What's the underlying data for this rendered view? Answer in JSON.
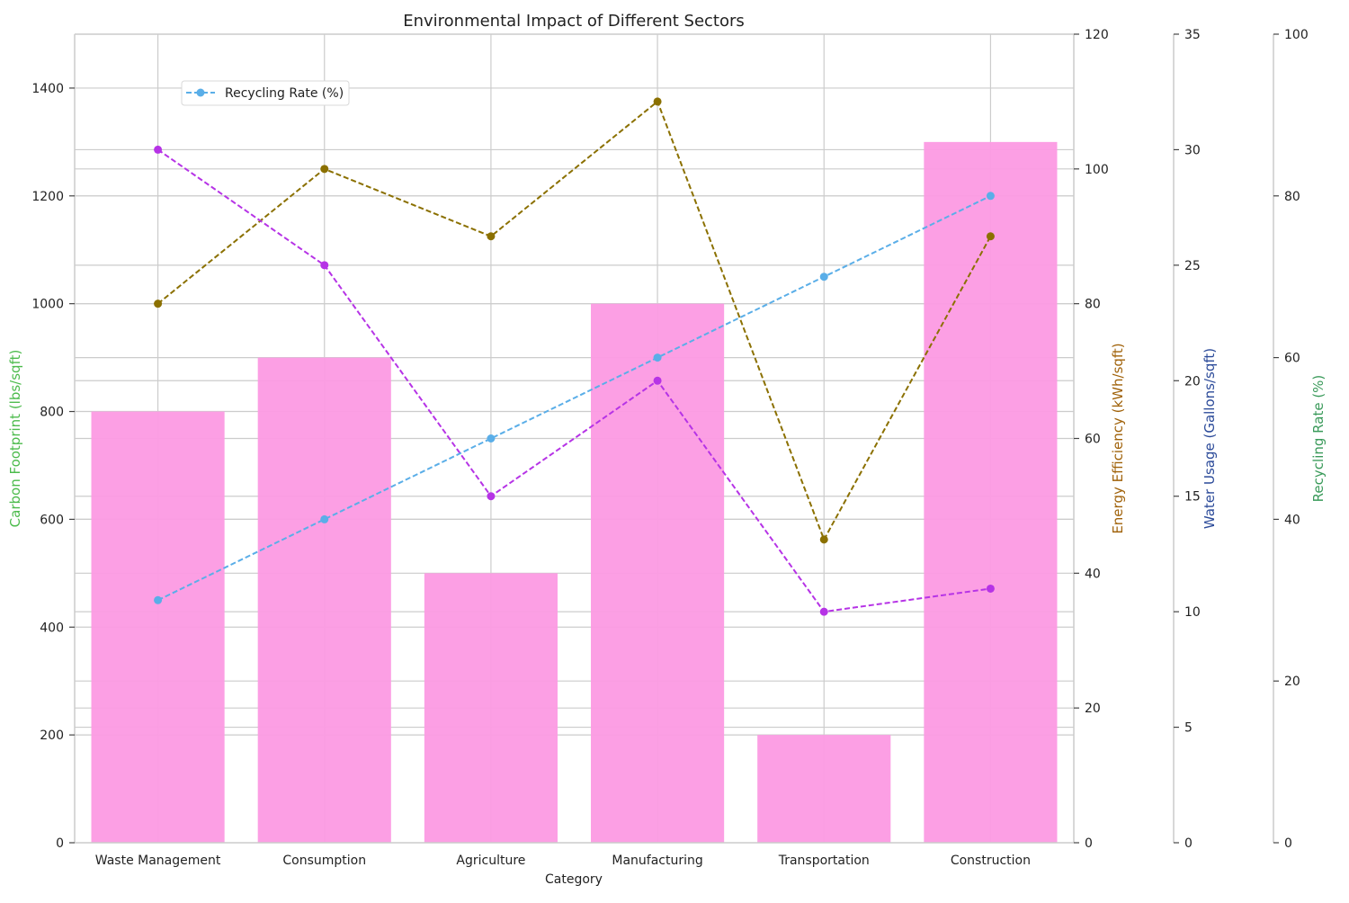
{
  "chart_data": {
    "type": "bar",
    "title": "Environmental Impact of Different Sectors",
    "xlabel": "Category",
    "categories": [
      "Waste Management",
      "Consumption",
      "Agriculture",
      "Manufacturing",
      "Transportation",
      "Construction"
    ],
    "grid": true,
    "legend": {
      "placement": "top-left",
      "entries": [
        "Recycling Rate (%)"
      ]
    },
    "axes": [
      {
        "id": "carbon",
        "label": "Carbon Footprint (lbs/sqft)",
        "color": "#4cbb4c",
        "range": [
          0,
          1500
        ],
        "ticks": [
          0,
          200,
          400,
          600,
          800,
          1000,
          1200,
          1400
        ]
      },
      {
        "id": "energy",
        "label": "Energy Efficiency (kWh/sqft)",
        "color": "#a0620a",
        "range": [
          0,
          120
        ],
        "ticks": [
          0,
          20,
          40,
          60,
          80,
          100,
          120
        ]
      },
      {
        "id": "water",
        "label": "Water Usage (Gallons/sqft)",
        "color": "#2b4a99",
        "range": [
          0,
          35
        ],
        "ticks": [
          0,
          5,
          10,
          15,
          20,
          25,
          30,
          35
        ]
      },
      {
        "id": "recycling",
        "label": "Recycling Rate (%)",
        "color": "#3a9a5a",
        "range": [
          0,
          100
        ],
        "ticks": [
          0,
          20,
          40,
          60,
          80,
          100
        ]
      }
    ],
    "series": [
      {
        "name": "Carbon Footprint (lbs/sqft)",
        "axis": "carbon",
        "kind": "bar",
        "color": "#fc9ae3",
        "values": [
          800,
          900,
          500,
          1000,
          200,
          1300
        ]
      },
      {
        "axis": "energy",
        "kind": "line",
        "color": "#8b7000",
        "values": [
          80,
          100,
          90,
          110,
          45,
          90
        ]
      },
      {
        "axis": "water",
        "kind": "line",
        "color": "#b633e6",
        "values": [
          30,
          25,
          15,
          20,
          10,
          11
        ]
      },
      {
        "name": "Recycling Rate (%)",
        "axis": "recycling",
        "kind": "line",
        "color": "#5aaee8",
        "values": [
          30,
          40,
          50,
          60,
          70,
          80
        ]
      }
    ]
  }
}
